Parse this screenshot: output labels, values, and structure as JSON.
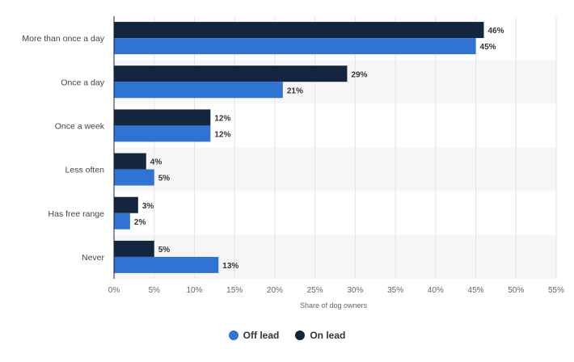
{
  "chart_data": {
    "type": "bar",
    "orientation": "horizontal",
    "categories": [
      "More than once a day",
      "Once a day",
      "Once a week",
      "Less often",
      "Has free range",
      "Never"
    ],
    "series": [
      {
        "name": "On lead",
        "color": "#14253f",
        "values": [
          46,
          29,
          12,
          4,
          3,
          5
        ]
      },
      {
        "name": "Off lead",
        "color": "#2f73d5",
        "values": [
          45,
          21,
          12,
          5,
          2,
          13
        ]
      }
    ],
    "data_labels": {
      "On lead": [
        "46%",
        "29%",
        "12%",
        "4%",
        "3%",
        "5%"
      ],
      "Off lead": [
        "45%",
        "21%",
        "12%",
        "5%",
        "2%",
        "13%"
      ]
    },
    "xlabel": "Share of dog owners",
    "ylabel": "",
    "xlim": [
      0,
      55
    ],
    "xticks": [
      0,
      5,
      10,
      15,
      20,
      25,
      30,
      35,
      40,
      45,
      50,
      55
    ],
    "xtick_labels": [
      "0%",
      "5%",
      "10%",
      "15%",
      "20%",
      "25%",
      "30%",
      "35%",
      "40%",
      "45%",
      "50%",
      "55%"
    ],
    "grid": true,
    "legend_position": "bottom-center",
    "legend": [
      {
        "label": "Off lead",
        "color": "#2f73d5"
      },
      {
        "label": "On lead",
        "color": "#14253f"
      }
    ]
  }
}
